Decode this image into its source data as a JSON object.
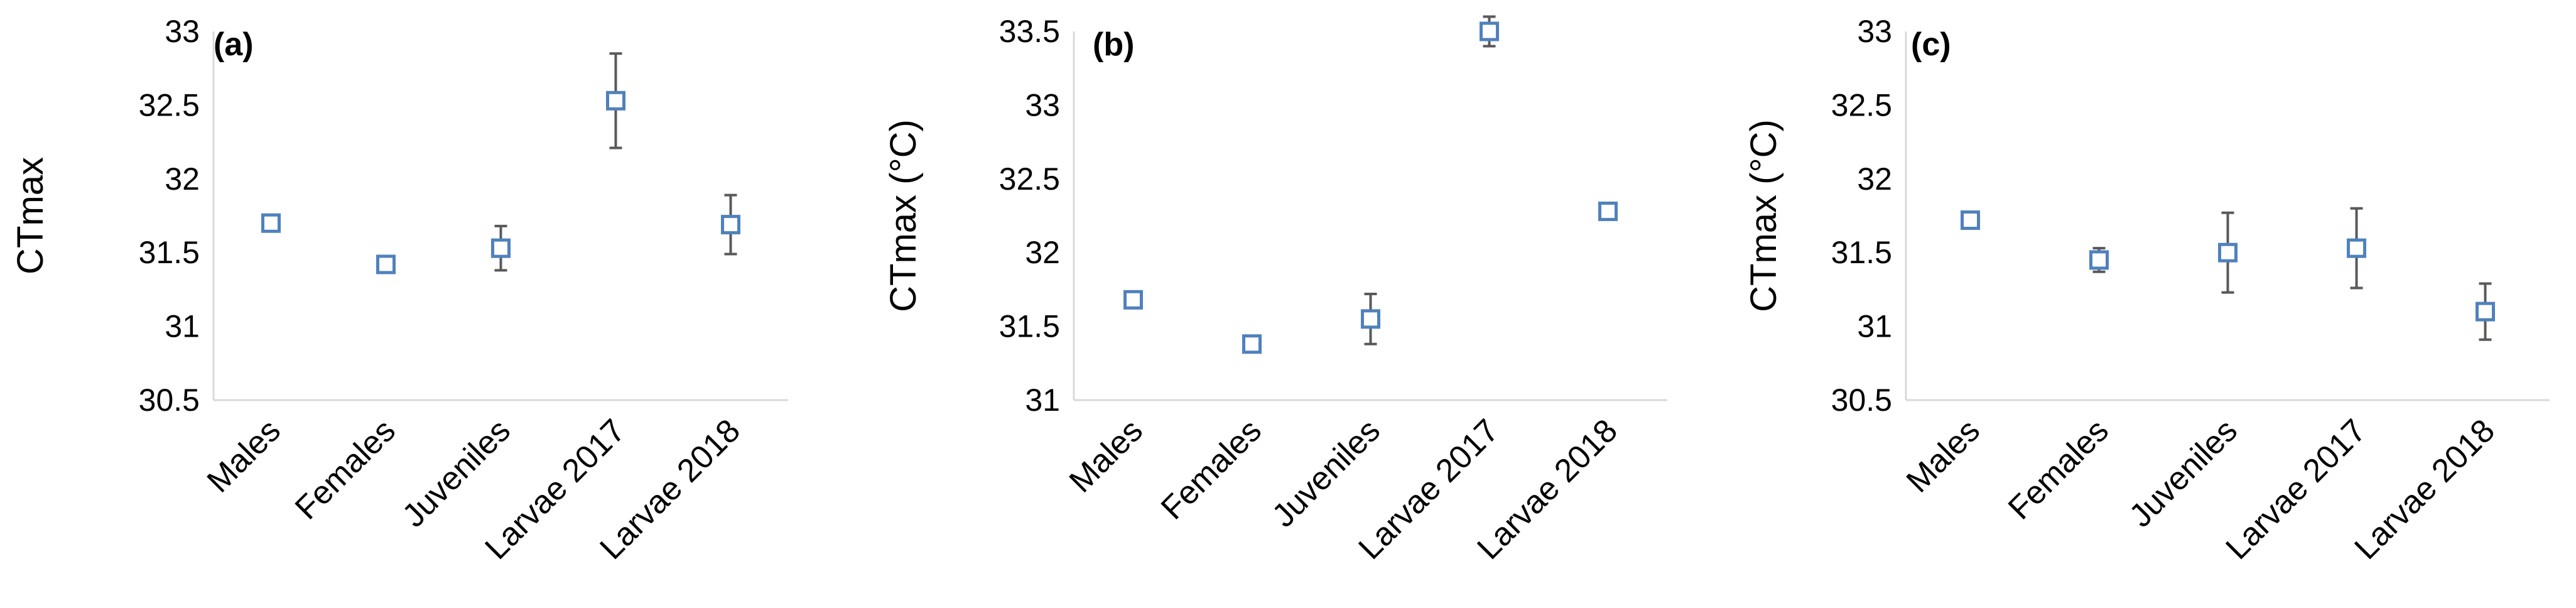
{
  "colors": {
    "marker": "#4f81bd",
    "error_bar": "#595959",
    "axis": "#d9d9d9"
  },
  "chart_data": [
    {
      "type": "scatter",
      "panel_label": "(a)",
      "ylabel": "CTmax",
      "xlabel": "",
      "categories": [
        "Males",
        "Females",
        "Juveniles",
        "Larvae 2017",
        "Larvae 2018"
      ],
      "ylim": [
        30.5,
        33
      ],
      "yticks": [
        "30.5",
        "31",
        "31.5",
        "32",
        "32.5",
        "33"
      ],
      "grid": false,
      "series": [
        {
          "values": [
            31.7,
            31.42,
            31.53,
            32.53,
            31.69
          ],
          "error": [
            0.03,
            0.04,
            0.15,
            0.32,
            0.2
          ]
        }
      ]
    },
    {
      "type": "scatter",
      "panel_label": "(b)",
      "ylabel": "CTmax (°C)",
      "xlabel": "",
      "categories": [
        "Males",
        "Females",
        "Juveniles",
        "Larvae 2017",
        "Larvae 2018"
      ],
      "ylim": [
        31,
        33.5
      ],
      "yticks": [
        "31",
        "31.5",
        "32",
        "32.5",
        "33",
        "33.5"
      ],
      "grid": false,
      "series": [
        {
          "values": [
            31.68,
            31.38,
            31.55,
            33.5,
            32.28
          ],
          "error": [
            0.05,
            0.05,
            0.17,
            0.1,
            0.04
          ]
        }
      ]
    },
    {
      "type": "scatter",
      "panel_label": "(c)",
      "ylabel": "CTmax (°C)",
      "xlabel": "",
      "categories": [
        "Males",
        "Females",
        "Juveniles",
        "Larvae 2017",
        "Larvae 2018"
      ],
      "ylim": [
        30.5,
        33
      ],
      "yticks": [
        "30.5",
        "31",
        "31.5",
        "32",
        "32.5",
        "33"
      ],
      "grid": false,
      "series": [
        {
          "values": [
            31.72,
            31.45,
            31.5,
            31.53,
            31.1
          ],
          "error": [
            0.05,
            0.08,
            0.27,
            0.27,
            0.19
          ]
        }
      ]
    }
  ]
}
